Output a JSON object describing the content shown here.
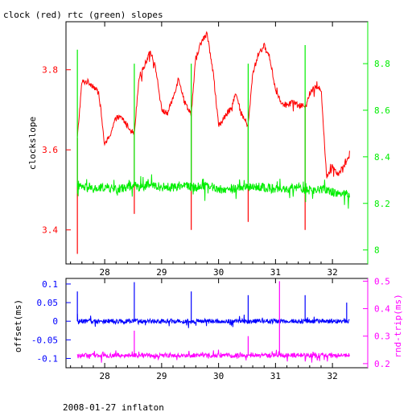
{
  "colors": {
    "clock": "#ff0000",
    "rtc": "#00ee00",
    "offset": "#0000ff",
    "roundtrip": "#ff00ff",
    "frame": "#000000"
  },
  "footer": "2008-01-27 inflaton",
  "chart_data": [
    {
      "type": "line",
      "title": "clock (red) rtc (green) slopes",
      "ylabel": "clockslope",
      "xlim": [
        27.32,
        32.62
      ],
      "ylim": [
        3.315,
        3.92
      ],
      "ylim_right": [
        7.94,
        8.98
      ],
      "x_ticks": [
        "28",
        "29",
        "30",
        "31",
        "32"
      ],
      "y_ticks_left": [
        "3.4",
        "3.6",
        "3.8"
      ],
      "y_ticks_right": [
        "8",
        "8.2",
        "8.4",
        "8.6",
        "8.8"
      ],
      "events": [
        27.52,
        28.52,
        29.52,
        30.52,
        31.52
      ],
      "series": [
        {
          "name": "clock",
          "axis": "left",
          "x": [
            27.52,
            27.6,
            27.7,
            27.8,
            27.9,
            28.0,
            28.1,
            28.2,
            28.3,
            28.4,
            28.52,
            28.6,
            28.7,
            28.8,
            28.9,
            29.0,
            29.1,
            29.2,
            29.3,
            29.4,
            29.52,
            29.6,
            29.7,
            29.8,
            29.9,
            30.0,
            30.1,
            30.2,
            30.3,
            30.4,
            30.52,
            30.6,
            30.7,
            30.8,
            30.9,
            31.0,
            31.1,
            31.2,
            31.3,
            31.4,
            31.52,
            31.6,
            31.7,
            31.8,
            31.9,
            32.0,
            32.1,
            32.2,
            32.3
          ],
          "y": [
            3.63,
            3.77,
            3.77,
            3.76,
            3.74,
            3.61,
            3.64,
            3.68,
            3.68,
            3.66,
            3.64,
            3.78,
            3.81,
            3.85,
            3.8,
            3.7,
            3.69,
            3.73,
            3.78,
            3.72,
            3.69,
            3.83,
            3.87,
            3.89,
            3.8,
            3.66,
            3.68,
            3.7,
            3.74,
            3.69,
            3.66,
            3.79,
            3.84,
            3.86,
            3.83,
            3.75,
            3.72,
            3.71,
            3.72,
            3.71,
            3.71,
            3.74,
            3.76,
            3.75,
            3.53,
            3.56,
            3.54,
            3.56,
            3.58
          ],
          "spikes": [
            [
              27.52,
              3.34
            ],
            [
              28.52,
              3.44
            ],
            [
              29.52,
              3.4
            ],
            [
              30.52,
              3.42
            ],
            [
              31.52,
              3.4
            ]
          ]
        },
        {
          "name": "rtc",
          "axis": "right",
          "x": [
            27.52,
            27.6,
            27.8,
            28.0,
            28.2,
            28.4,
            28.52,
            28.6,
            28.8,
            29.0,
            29.2,
            29.4,
            29.52,
            29.6,
            29.8,
            30.0,
            30.2,
            30.4,
            30.52,
            30.6,
            30.8,
            31.0,
            31.2,
            31.4,
            31.52,
            31.6,
            31.8,
            32.0,
            32.2,
            32.3
          ],
          "y": [
            8.27,
            8.27,
            8.26,
            8.27,
            8.26,
            8.27,
            8.28,
            8.27,
            8.28,
            8.27,
            8.27,
            8.28,
            8.27,
            8.27,
            8.28,
            8.26,
            8.26,
            8.27,
            8.27,
            8.27,
            8.27,
            8.26,
            8.26,
            8.27,
            8.26,
            8.25,
            8.26,
            8.25,
            8.24,
            8.24
          ],
          "spikes": [
            [
              27.52,
              8.86
            ],
            [
              28.52,
              8.8
            ],
            [
              29.52,
              8.8
            ],
            [
              30.52,
              8.8
            ],
            [
              31.52,
              8.88
            ]
          ]
        }
      ]
    },
    {
      "type": "line",
      "ylabel": "offset(ms)",
      "ylabel_right": "rnd-trip(ms)",
      "xlim": [
        27.32,
        32.62
      ],
      "ylim": [
        -0.125,
        0.115
      ],
      "ylim_right": [
        0.185,
        0.51
      ],
      "x_ticks": [
        "28",
        "29",
        "30",
        "31",
        "32"
      ],
      "y_ticks_left": [
        "-0.1",
        "-0.05",
        "0",
        "0.05",
        "0.1"
      ],
      "y_ticks_right": [
        "0.2",
        "0.3",
        "0.4",
        "0.5"
      ],
      "series": [
        {
          "name": "offset",
          "axis": "left",
          "x": [
            27.52,
            28.0,
            28.52,
            29.0,
            29.52,
            30.0,
            30.52,
            31.0,
            31.52,
            32.0,
            32.3
          ],
          "y": [
            0.0,
            0.0,
            0.0,
            0.0,
            0.0,
            0.0,
            0.0,
            0.0,
            0.0,
            0.0,
            0.0
          ],
          "spikes": [
            [
              27.52,
              0.08
            ],
            [
              28.52,
              0.105
            ],
            [
              29.52,
              0.08
            ],
            [
              30.52,
              0.07
            ],
            [
              31.52,
              0.07
            ],
            [
              32.25,
              0.05
            ]
          ]
        },
        {
          "name": "rnd-trip",
          "axis": "right",
          "x": [
            27.52,
            28.0,
            28.52,
            29.0,
            29.52,
            30.0,
            30.52,
            31.0,
            31.52,
            32.0,
            32.3
          ],
          "y": [
            0.23,
            0.23,
            0.23,
            0.23,
            0.23,
            0.23,
            0.23,
            0.23,
            0.23,
            0.23,
            0.23
          ],
          "spikes": [
            [
              31.07,
              0.5
            ],
            [
              28.52,
              0.32
            ],
            [
              30.52,
              0.3
            ]
          ]
        }
      ]
    }
  ]
}
